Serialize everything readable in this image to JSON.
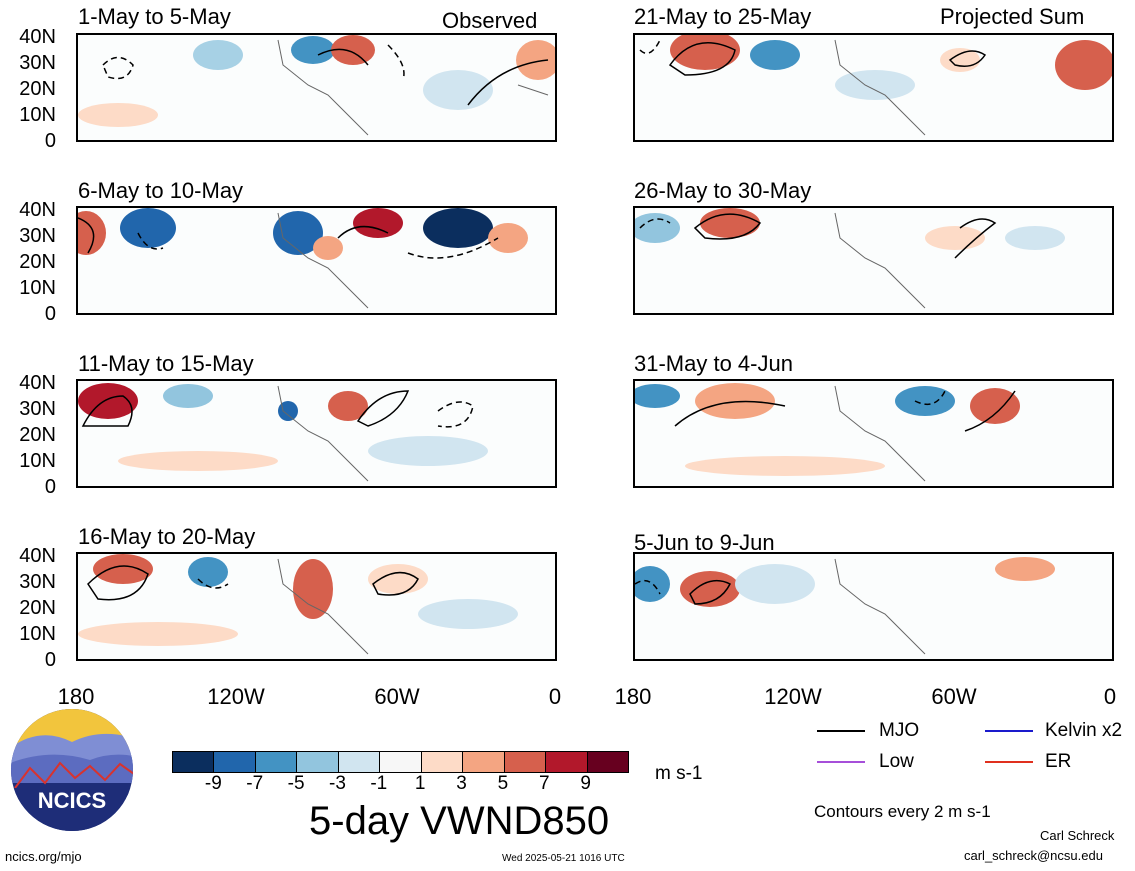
{
  "column_headers": {
    "left": "Observed",
    "right": "Projected Sum"
  },
  "panels_left": [
    {
      "title": "1-May to 5-May"
    },
    {
      "title": "6-May to 10-May"
    },
    {
      "title": "11-May to 15-May"
    },
    {
      "title": "16-May to 20-May"
    }
  ],
  "panels_right": [
    {
      "title": "21-May to 25-May"
    },
    {
      "title": "26-May to 30-May"
    },
    {
      "title": "31-May to 4-Jun"
    },
    {
      "title": "5-Jun to 9-Jun"
    }
  ],
  "lat_labels": [
    "40N",
    "30N",
    "20N",
    "10N",
    "0"
  ],
  "lon_labels": [
    "180",
    "120W",
    "60W",
    "0"
  ],
  "colorbar": {
    "labels": [
      "-9",
      "-7",
      "-5",
      "-3",
      "-1",
      "1",
      "3",
      "5",
      "7",
      "9"
    ],
    "colors": [
      "#0b2e5e",
      "#2166ac",
      "#4393c3",
      "#92c5de",
      "#d1e5f0",
      "#f7f7f7",
      "#fddbc7",
      "#f4a582",
      "#d6604d",
      "#b2182b",
      "#67001f"
    ],
    "units": "m s-1"
  },
  "main_title": "5-day VWND850",
  "legend": {
    "mjo": "MJO",
    "kelvin": "Kelvin x2",
    "low": "Low",
    "er": "ER",
    "contours": "Contours every 2 m s-1",
    "colors": {
      "mjo": "#000000",
      "kelvin": "#1a1acc",
      "low": "#a64fd9",
      "er": "#e0301e"
    }
  },
  "logo": {
    "text": "NCICS"
  },
  "footer": {
    "url": "ncics.org/mjo",
    "timestamp": "Wed 2025-05-21 1016 UTC",
    "author": "Carl Schreck",
    "email": "carl_schreck@ncsu.edu"
  }
}
